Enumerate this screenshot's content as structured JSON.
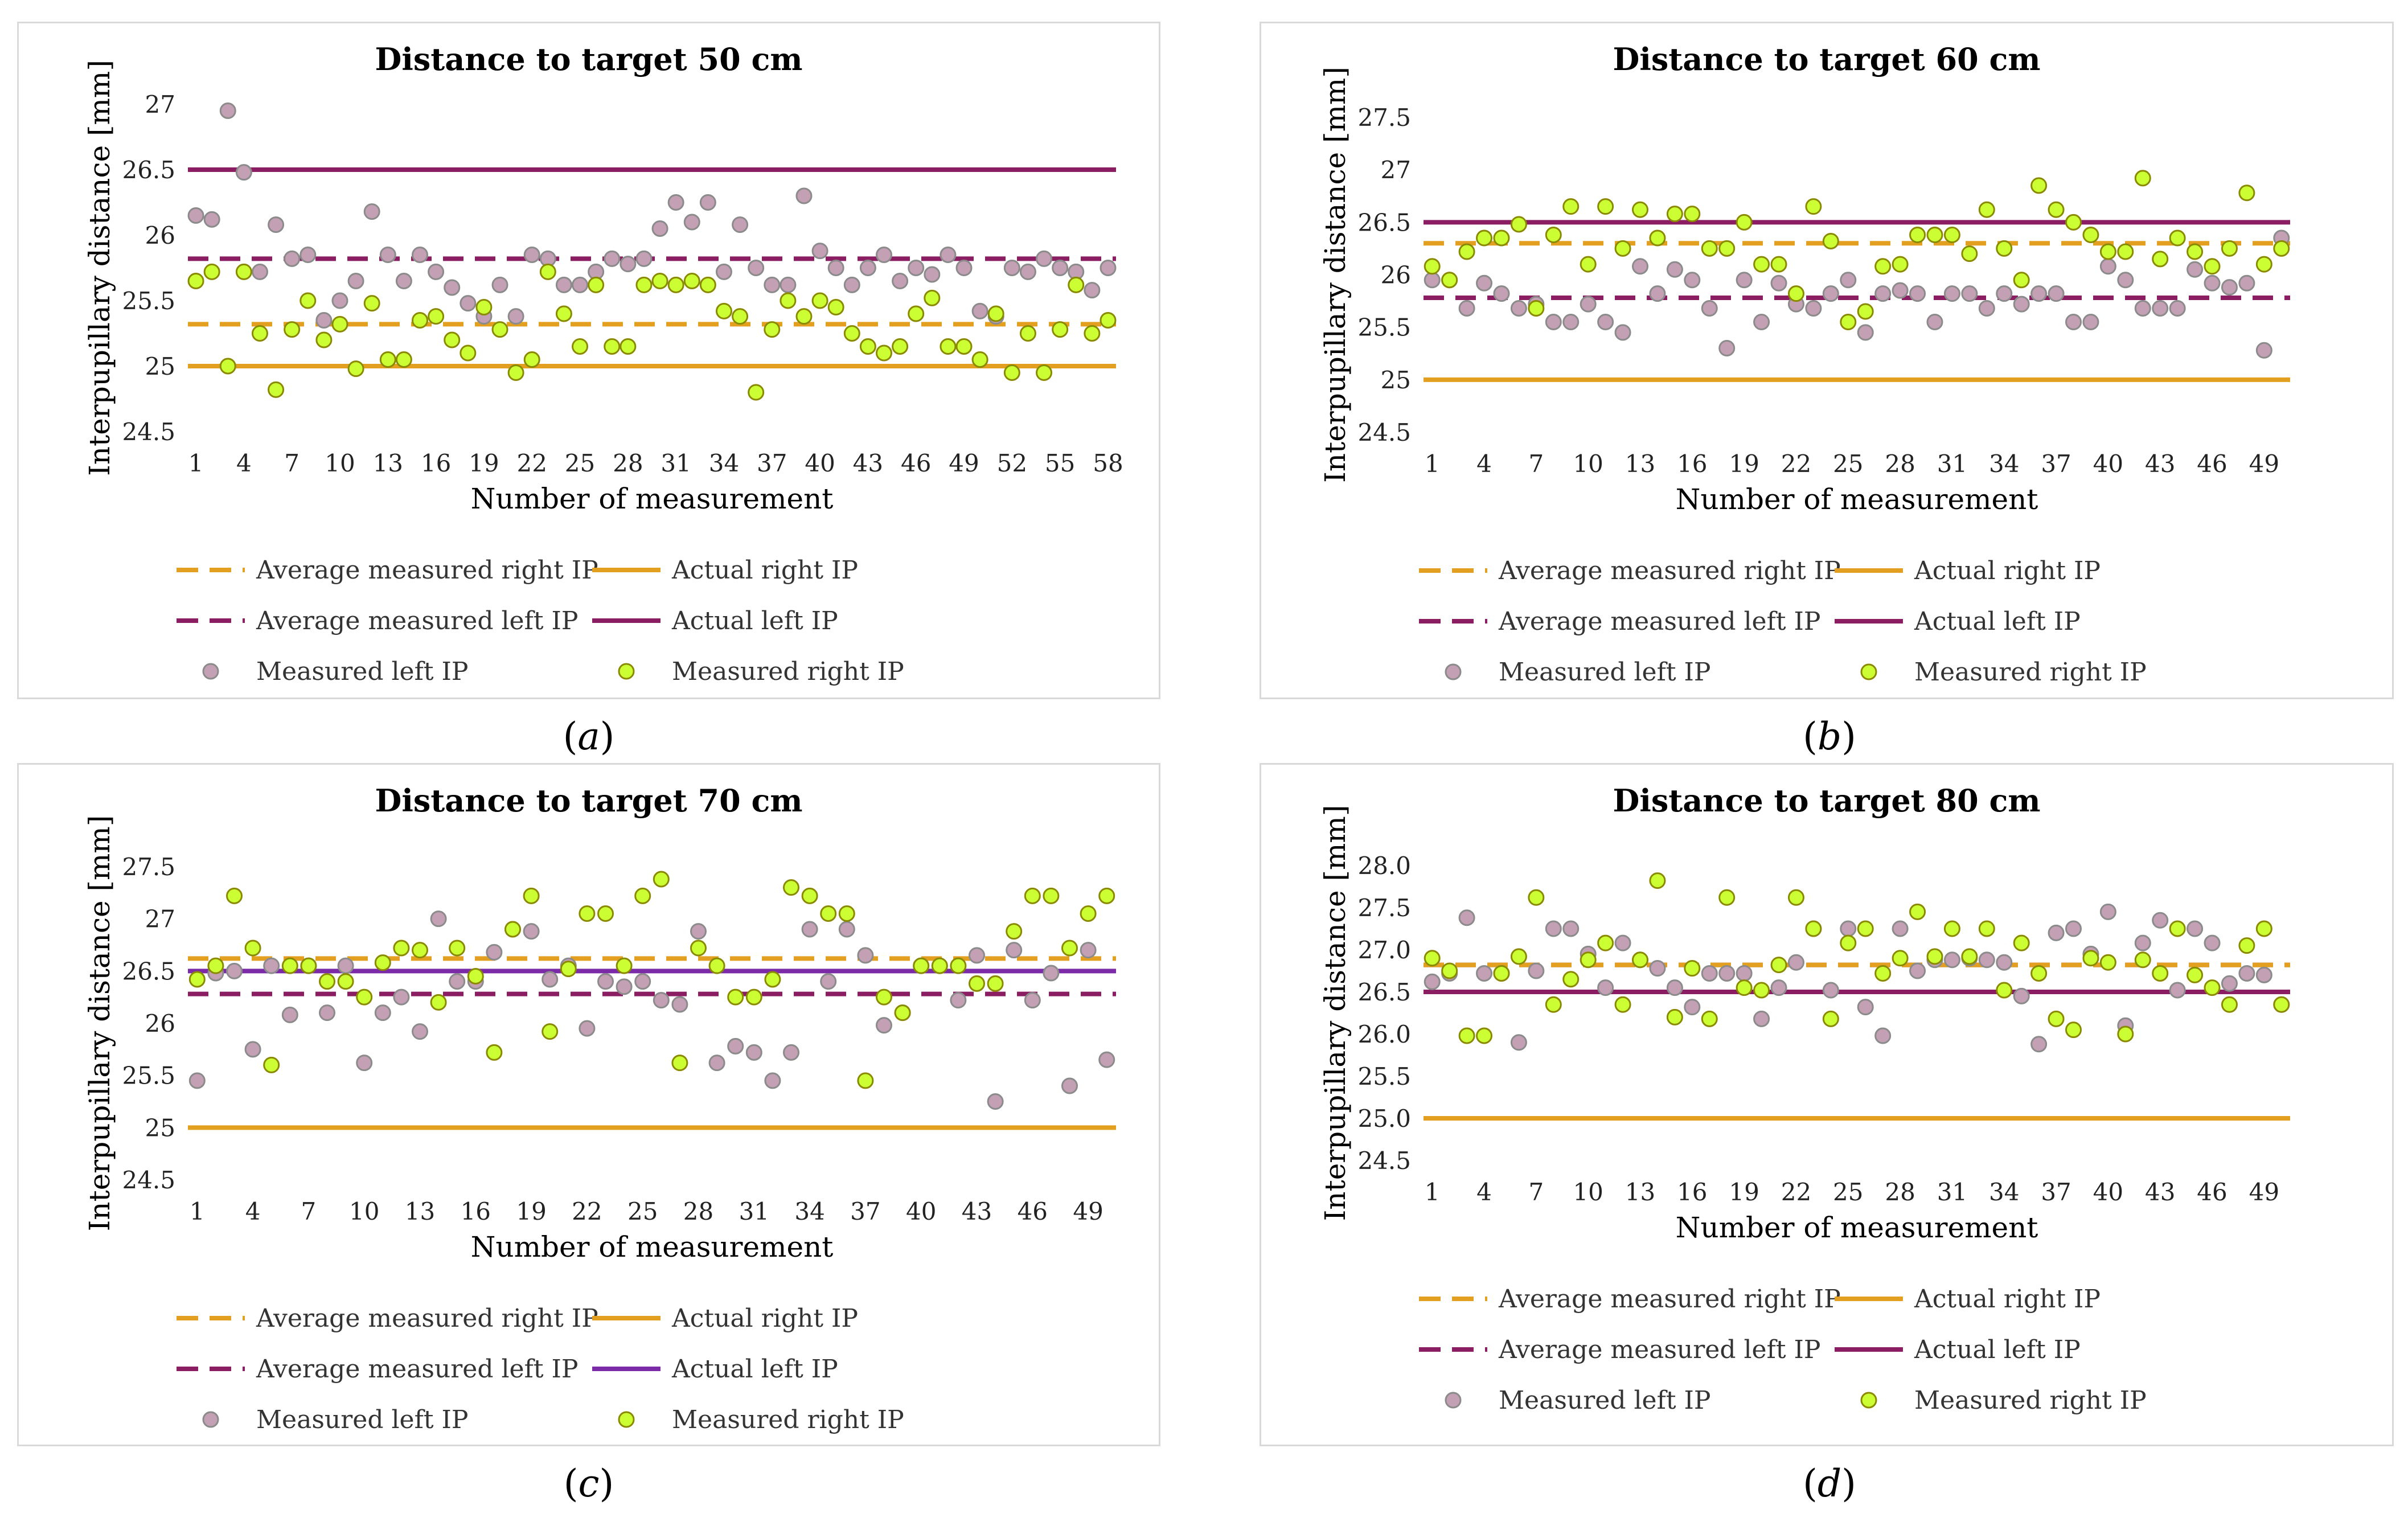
{
  "colors": {
    "avg_right": "#e39f1f",
    "actual_right": "#e39f1f",
    "avg_left": "#8b1d63",
    "actual_left": "#8b1d63",
    "actual_left_c": "#7b2aa8",
    "left_marker_fill": "#c4a0b5",
    "left_marker_stroke": "#8b8b8b",
    "right_marker_fill": "#ccff33",
    "right_marker_stroke": "#8a8a00"
  },
  "legend": {
    "avg_right": "Average measured right IP",
    "actual_right": "Actual right IP",
    "avg_left": "Average measured left IP",
    "actual_left": "Actual left IP",
    "measured_left": "Measured left IP",
    "measured_right": "Measured right IP"
  },
  "chart_data": [
    {
      "type": "scatter",
      "caption": "(a)",
      "caption_letter": "a",
      "title": "Distance to target 50 cm",
      "xlabel": "Number of measurement",
      "ylabel": "Interpupillary distance [mm]",
      "n": 58,
      "xstep": 3,
      "ylim": [
        24.5,
        27
      ],
      "yticks": [
        24.5,
        25,
        25.5,
        26,
        26.5,
        27
      ],
      "ytick_labels": [
        "24.5",
        "25",
        "25.5",
        "26",
        "26.5",
        "27"
      ],
      "avg_right": 25.32,
      "actual_right": 25.0,
      "avg_left": 25.82,
      "actual_left": 26.5,
      "series_left": [
        26.15,
        26.12,
        26.95,
        26.48,
        25.72,
        26.08,
        25.82,
        25.85,
        25.35,
        25.5,
        25.65,
        26.18,
        25.85,
        25.65,
        25.85,
        25.72,
        25.6,
        25.48,
        25.38,
        25.62,
        25.38,
        25.85,
        25.82,
        25.62,
        25.62,
        25.72,
        25.82,
        25.78,
        25.82,
        26.05,
        26.25,
        26.1,
        26.25,
        25.72,
        26.08,
        25.75,
        25.62,
        25.62,
        26.3,
        25.88,
        25.75,
        25.62,
        25.75,
        25.85,
        25.65,
        25.75,
        25.7,
        25.85,
        25.75,
        25.42,
        25.38,
        25.75,
        25.72,
        25.82,
        25.75,
        25.72,
        25.58,
        25.75
      ],
      "series_right": [
        25.65,
        25.72,
        25.0,
        25.72,
        25.25,
        24.82,
        25.28,
        25.5,
        25.2,
        25.32,
        24.98,
        25.48,
        25.05,
        25.05,
        25.35,
        25.38,
        25.2,
        25.1,
        25.45,
        25.28,
        24.95,
        25.05,
        25.72,
        25.4,
        25.15,
        25.62,
        25.15,
        25.15,
        25.62,
        25.65,
        25.62,
        25.65,
        25.62,
        25.42,
        25.38,
        24.8,
        25.28,
        25.5,
        25.38,
        25.5,
        25.45,
        25.25,
        25.15,
        25.1,
        25.15,
        25.4,
        25.52,
        25.15,
        25.15,
        25.05,
        25.4,
        24.95,
        25.25,
        24.95,
        25.28,
        25.62,
        25.25,
        25.35
      ]
    },
    {
      "type": "scatter",
      "caption": "(b)",
      "caption_letter": "b",
      "title": "Distance to target 60 cm",
      "xlabel": "Number of measurement",
      "ylabel": "Interpupillary distance [mm]",
      "n": 50,
      "xstep": 3,
      "ylim": [
        24.5,
        27.5
      ],
      "yticks": [
        24.5,
        25,
        25.5,
        26,
        26.5,
        27,
        27.5
      ],
      "ytick_labels": [
        "24.5",
        "25",
        "25.5",
        "26",
        "26.5",
        "27",
        "27.5"
      ],
      "avg_right": 26.3,
      "actual_right": 25.0,
      "avg_left": 25.78,
      "actual_left": 26.5,
      "series_left": [
        25.95,
        25.95,
        25.68,
        25.92,
        25.82,
        25.68,
        25.72,
        25.55,
        25.55,
        25.72,
        25.55,
        25.45,
        26.08,
        25.82,
        26.05,
        25.95,
        25.68,
        25.3,
        25.95,
        25.55,
        25.92,
        25.72,
        25.68,
        25.82,
        25.95,
        25.45,
        25.82,
        25.85,
        25.82,
        25.55,
        25.82,
        25.82,
        25.68,
        25.82,
        25.72,
        25.82,
        25.82,
        25.55,
        25.55,
        26.08,
        25.95,
        25.68,
        25.68,
        25.68,
        26.05,
        25.92,
        25.88,
        25.92,
        25.28,
        26.35
      ],
      "series_right": [
        26.08,
        25.95,
        26.22,
        26.35,
        26.35,
        26.48,
        25.68,
        26.38,
        26.65,
        26.1,
        26.65,
        26.25,
        26.62,
        26.35,
        26.58,
        26.58,
        26.25,
        26.25,
        26.5,
        26.1,
        26.1,
        25.82,
        26.65,
        26.32,
        25.55,
        25.65,
        26.08,
        26.1,
        26.38,
        26.38,
        26.38,
        26.2,
        26.62,
        26.25,
        25.95,
        26.85,
        26.62,
        26.5,
        26.38,
        26.22,
        26.22,
        26.92,
        26.15,
        26.35,
        26.22,
        26.08,
        26.25,
        26.78,
        26.1,
        26.25
      ]
    },
    {
      "type": "scatter",
      "caption": "(c)",
      "caption_letter": "c",
      "title": "Distance to target 70 cm",
      "xlabel": "Number of measurement",
      "ylabel": "Interpupillary distance [mm]",
      "n": 50,
      "xstep": 3,
      "ylim": [
        24.5,
        27.5
      ],
      "yticks": [
        24.5,
        25,
        25.5,
        26,
        26.5,
        27,
        27.5
      ],
      "ytick_labels": [
        "24.5",
        "25",
        "25.5",
        "26",
        "26.5",
        "27",
        "27.5"
      ],
      "avg_right": 26.62,
      "actual_right": 25.0,
      "avg_left": 26.28,
      "actual_left": 26.5,
      "series_left": [
        25.45,
        26.48,
        26.5,
        25.75,
        26.55,
        26.08,
        26.55,
        26.1,
        26.55,
        25.62,
        26.1,
        26.25,
        25.92,
        27.0,
        26.4,
        26.4,
        26.68,
        26.9,
        26.88,
        26.42,
        26.55,
        25.95,
        26.4,
        26.35,
        26.4,
        26.22,
        26.18,
        26.88,
        25.62,
        25.78,
        25.72,
        25.45,
        25.72,
        26.9,
        26.4,
        26.9,
        26.65,
        25.98,
        26.1,
        26.55,
        26.55,
        26.22,
        26.65,
        25.25,
        26.7,
        26.22,
        26.48,
        25.4,
        26.7,
        25.65
      ],
      "series_right": [
        26.42,
        26.55,
        27.22,
        26.72,
        25.6,
        26.55,
        26.55,
        26.4,
        26.4,
        26.25,
        26.58,
        26.72,
        26.7,
        26.2,
        26.72,
        26.45,
        25.72,
        26.9,
        27.22,
        25.92,
        26.52,
        27.05,
        27.05,
        26.55,
        27.22,
        27.38,
        25.62,
        26.72,
        26.55,
        26.25,
        26.25,
        26.42,
        27.3,
        27.22,
        27.05,
        27.05,
        25.45,
        26.25,
        26.1,
        26.55,
        26.55,
        26.55,
        26.38,
        26.38,
        26.88,
        27.22,
        27.22,
        26.72,
        27.05,
        27.22
      ]
    },
    {
      "type": "scatter",
      "caption": "(d)",
      "caption_letter": "d",
      "title": "Distance to target 80 cm",
      "xlabel": "Number of measurement",
      "ylabel": "Interpupillary distance [mm]",
      "n": 50,
      "xstep": 3,
      "ylim": [
        24.5,
        28.0
      ],
      "yticks": [
        24.5,
        25.0,
        25.5,
        26.0,
        26.5,
        27.0,
        27.5,
        28.0
      ],
      "ytick_labels": [
        "24.5",
        "25.0",
        "25.5",
        "26.0",
        "26.5",
        "27.0",
        "27.5",
        "28.0"
      ],
      "avg_right": 26.82,
      "actual_right": 25.0,
      "avg_left": 26.82,
      "actual_left": 26.5,
      "series_left": [
        26.62,
        26.72,
        27.38,
        26.72,
        26.72,
        25.9,
        26.75,
        27.25,
        27.25,
        26.95,
        26.55,
        27.08,
        26.88,
        26.78,
        26.55,
        26.32,
        26.72,
        26.72,
        26.72,
        26.18,
        26.55,
        26.85,
        27.25,
        26.52,
        27.25,
        26.32,
        25.98,
        27.25,
        26.75,
        26.88,
        26.88,
        26.9,
        26.88,
        26.85,
        26.45,
        25.88,
        27.2,
        27.25,
        26.95,
        27.45,
        26.1,
        27.08,
        27.35,
        26.52,
        27.25,
        27.08,
        26.6,
        26.72,
        26.7,
        26.35
      ],
      "series_right": [
        26.9,
        26.75,
        25.98,
        25.98,
        26.72,
        26.92,
        27.62,
        26.35,
        26.65,
        26.88,
        27.08,
        26.35,
        26.88,
        27.82,
        26.2,
        26.78,
        26.18,
        27.62,
        26.55,
        26.52,
        26.82,
        27.62,
        27.25,
        26.18,
        27.08,
        27.25,
        26.72,
        26.9,
        27.45,
        26.92,
        27.25,
        26.92,
        27.25,
        26.52,
        27.08,
        26.72,
        26.18,
        26.05,
        26.9,
        26.85,
        26.0,
        26.88,
        26.72,
        27.25,
        26.7,
        26.55,
        26.35,
        27.05,
        27.25,
        26.35
      ]
    }
  ]
}
